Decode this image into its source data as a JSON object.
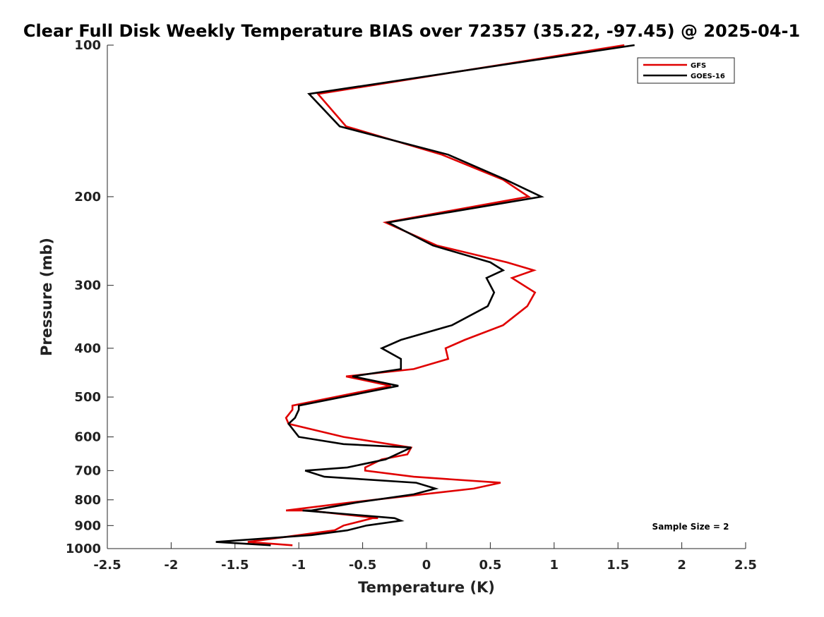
{
  "chart_data": {
    "type": "line",
    "title": "Clear Full Disk Weekly Temperature BIAS over 72357 (35.22, -97.45) @ 2025-04-1",
    "xlabel": "Temperature (K)",
    "ylabel": "Pressure (mb)",
    "xlim": [
      -2.5,
      2.5
    ],
    "ylim": [
      100,
      1000
    ],
    "y_scale": "log",
    "y_reversed": true,
    "xticks": [
      -2.5,
      -2,
      -1.5,
      -1,
      -0.5,
      0,
      0.5,
      1,
      1.5,
      2,
      2.5
    ],
    "xtick_labels": [
      "-2.5",
      "-2",
      "-1.5",
      "-1",
      "-0.5",
      "0",
      "0.5",
      "1",
      "1.5",
      "2",
      "2.5"
    ],
    "yticks": [
      100,
      200,
      300,
      400,
      500,
      600,
      700,
      800,
      900,
      1000
    ],
    "ytick_labels": [
      "100",
      "200",
      "300",
      "400",
      "500",
      "600",
      "700",
      "800",
      "900",
      "1000"
    ],
    "grid": false,
    "legend_position": "top-right",
    "annotation": "Sample Size = 2",
    "series": [
      {
        "name": "GFS",
        "color": "#e00000",
        "points": [
          [
            1.55,
            100
          ],
          [
            -0.85,
            125
          ],
          [
            -0.63,
            145
          ],
          [
            0.12,
            165
          ],
          [
            0.6,
            185
          ],
          [
            0.8,
            200
          ],
          [
            -0.32,
            225
          ],
          [
            0.08,
            250
          ],
          [
            0.63,
            270
          ],
          [
            0.84,
            280
          ],
          [
            0.67,
            290
          ],
          [
            0.85,
            310
          ],
          [
            0.79,
            330
          ],
          [
            0.6,
            360
          ],
          [
            0.3,
            385
          ],
          [
            0.15,
            400
          ],
          [
            0.17,
            420
          ],
          [
            -0.1,
            440
          ],
          [
            -0.63,
            455
          ],
          [
            -0.28,
            475
          ],
          [
            -1.05,
            520
          ],
          [
            -1.05,
            530
          ],
          [
            -1.1,
            550
          ],
          [
            -1.08,
            565
          ],
          [
            -0.65,
            600
          ],
          [
            -0.12,
            630
          ],
          [
            -0.15,
            650
          ],
          [
            -0.35,
            665
          ],
          [
            -0.48,
            690
          ],
          [
            -0.48,
            700
          ],
          [
            -0.1,
            720
          ],
          [
            0.58,
            740
          ],
          [
            0.37,
            760
          ],
          [
            -0.6,
            810
          ],
          [
            -1.1,
            840
          ],
          [
            -0.93,
            840
          ],
          [
            -0.38,
            870
          ],
          [
            -0.42,
            870
          ],
          [
            -0.65,
            900
          ],
          [
            -0.72,
            920
          ],
          [
            -1.4,
            970
          ],
          [
            -1.05,
            985
          ]
        ]
      },
      {
        "name": "GOES-16",
        "color": "#000000",
        "points": [
          [
            1.63,
            100
          ],
          [
            -0.92,
            125
          ],
          [
            -0.68,
            145
          ],
          [
            0.17,
            165
          ],
          [
            0.62,
            185
          ],
          [
            0.9,
            200
          ],
          [
            -0.3,
            225
          ],
          [
            0.05,
            250
          ],
          [
            0.5,
            270
          ],
          [
            0.6,
            280
          ],
          [
            0.47,
            290
          ],
          [
            0.53,
            310
          ],
          [
            0.48,
            330
          ],
          [
            0.2,
            360
          ],
          [
            -0.2,
            385
          ],
          [
            -0.35,
            400
          ],
          [
            -0.2,
            420
          ],
          [
            -0.2,
            440
          ],
          [
            -0.58,
            455
          ],
          [
            -0.22,
            475
          ],
          [
            -1.0,
            520
          ],
          [
            -1.0,
            530
          ],
          [
            -1.03,
            550
          ],
          [
            -1.08,
            565
          ],
          [
            -1.0,
            600
          ],
          [
            -0.65,
            620
          ],
          [
            -0.12,
            630
          ],
          [
            -0.32,
            665
          ],
          [
            -0.62,
            690
          ],
          [
            -0.95,
            700
          ],
          [
            -0.8,
            720
          ],
          [
            -0.08,
            740
          ],
          [
            0.07,
            760
          ],
          [
            -0.1,
            780
          ],
          [
            -0.55,
            810
          ],
          [
            -0.9,
            840
          ],
          [
            -0.97,
            840
          ],
          [
            -0.25,
            870
          ],
          [
            -0.2,
            880
          ],
          [
            -0.47,
            900
          ],
          [
            -0.62,
            920
          ],
          [
            -0.9,
            940
          ],
          [
            -1.65,
            970
          ],
          [
            -1.22,
            985
          ]
        ]
      }
    ]
  }
}
